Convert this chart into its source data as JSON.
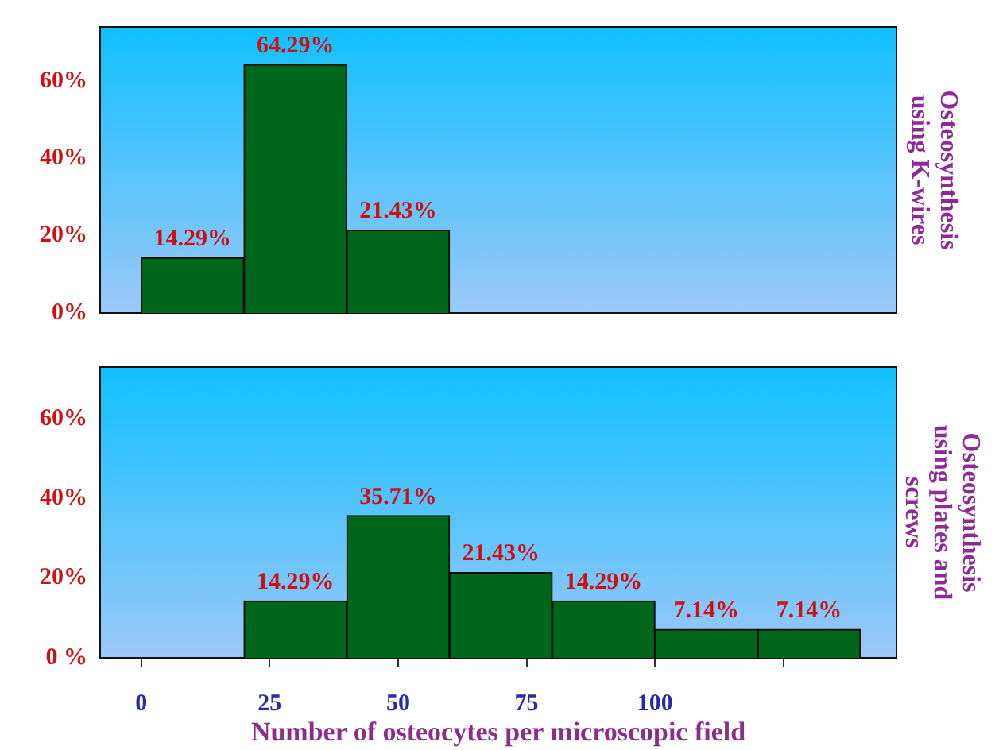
{
  "chart_data": [
    {
      "type": "histogram",
      "title": "Osteosynthesis using K-wires",
      "bins": [
        0,
        20,
        40,
        60
      ],
      "values": [
        14.29,
        64.29,
        21.43
      ],
      "value_labels": [
        "14.29%",
        "64.29%",
        "21.43%"
      ],
      "color": "#006619",
      "xlim": [
        -8,
        147
      ],
      "ylim": [
        0,
        74
      ],
      "yticks": [
        {
          "value": 0,
          "label": "0%"
        },
        {
          "value": 20,
          "label": "20%"
        },
        {
          "value": 40,
          "label": "40%"
        },
        {
          "value": 60,
          "label": "60%"
        }
      ],
      "tick_labels": "y",
      "grid": false,
      "legend": false
    },
    {
      "type": "histogram",
      "title": "Osteosynthesis using plates and screws",
      "xlabel": "Number of osteocytes per microscopic field",
      "bins": [
        20,
        40,
        60,
        80,
        100,
        120,
        140
      ],
      "values": [
        14.29,
        35.71,
        21.43,
        14.29,
        7.14,
        7.14
      ],
      "value_labels": [
        "14.29%",
        "35.71%",
        "21.43%",
        "14.29%",
        "7.14%",
        "7.14%"
      ],
      "color": "#006619",
      "xlim": [
        -8,
        147
      ],
      "xticks": [
        0,
        25,
        50,
        75,
        100,
        {
          "value": 125,
          "label": null
        }
      ],
      "ylim": [
        0,
        73
      ],
      "yticks": [
        {
          "value": 0,
          "label": "0 %"
        },
        {
          "value": 20,
          "label": "20%"
        },
        {
          "value": 40,
          "label": "40%"
        },
        {
          "value": 60,
          "label": "60%"
        }
      ],
      "grid": false,
      "legend": false
    }
  ]
}
